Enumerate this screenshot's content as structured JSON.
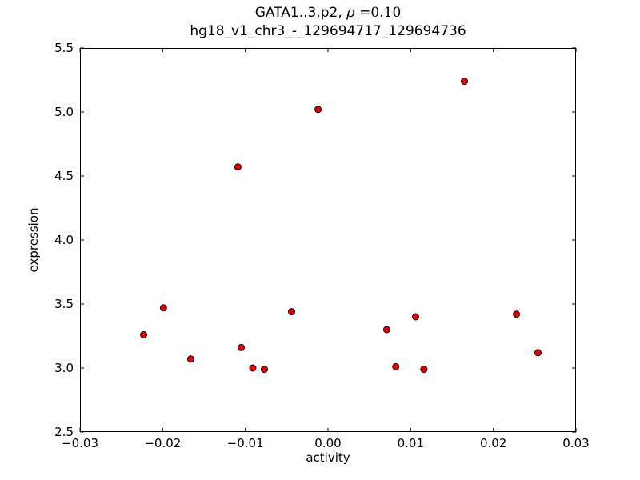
{
  "chart_data": {
    "type": "scatter",
    "title_line1_prefix": "GATA1..3.p2, ",
    "title_rho": "ρ",
    "title_line1_suffix": " =0.10",
    "title_line2": "hg18_v1_chr3_-_129694717_129694736",
    "xlabel": "activity",
    "ylabel": "expression",
    "xlim": [
      -0.03,
      0.03
    ],
    "ylim": [
      2.5,
      5.5
    ],
    "xticks": [
      -0.03,
      -0.02,
      -0.01,
      0,
      0.01,
      0.02,
      0.03
    ],
    "xtick_labels": [
      "−0.03",
      "−0.02",
      "−0.01",
      "0.00",
      "0.01",
      "0.02",
      "0.03"
    ],
    "yticks": [
      2.5,
      3.0,
      3.5,
      4.0,
      4.5,
      5.0,
      5.5
    ],
    "ytick_labels": [
      "2.5",
      "3.0",
      "3.5",
      "4.0",
      "4.5",
      "5.0",
      "5.5"
    ],
    "grid": false,
    "legend": "none",
    "marker": {
      "fill": "#e00000",
      "edge": "#200000",
      "radius": 4
    },
    "points": [
      {
        "x": -0.0223,
        "y": 3.26
      },
      {
        "x": -0.0199,
        "y": 3.47
      },
      {
        "x": -0.0166,
        "y": 3.07
      },
      {
        "x": -0.0109,
        "y": 4.57
      },
      {
        "x": -0.0105,
        "y": 3.16
      },
      {
        "x": -0.0091,
        "y": 3.0
      },
      {
        "x": -0.0077,
        "y": 2.99
      },
      {
        "x": -0.0044,
        "y": 3.44
      },
      {
        "x": -0.0012,
        "y": 5.02
      },
      {
        "x": 0.0071,
        "y": 3.3
      },
      {
        "x": 0.0082,
        "y": 3.01
      },
      {
        "x": 0.0106,
        "y": 3.4
      },
      {
        "x": 0.0116,
        "y": 2.99
      },
      {
        "x": 0.0165,
        "y": 5.24
      },
      {
        "x": 0.0228,
        "y": 3.42
      },
      {
        "x": 0.0254,
        "y": 3.12
      }
    ]
  }
}
